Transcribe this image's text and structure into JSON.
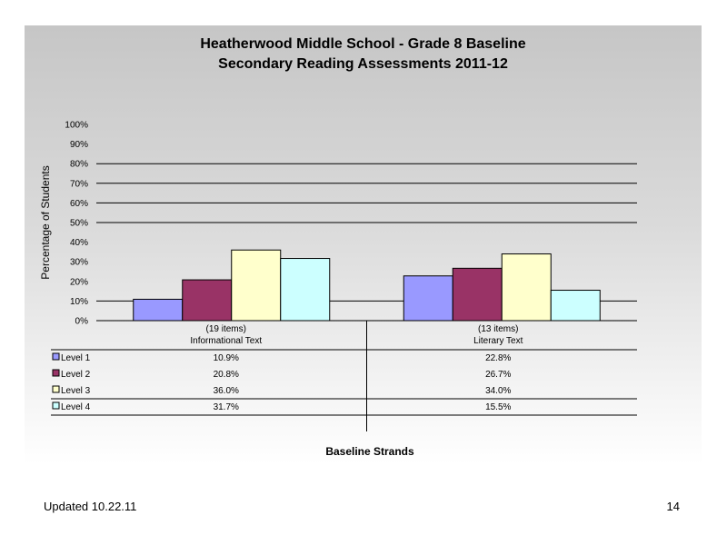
{
  "chart_data": {
    "type": "bar",
    "title_lines": [
      "Heatherwood Middle School - Grade 8 Baseline",
      "Secondary Reading Assessments 2011-12"
    ],
    "ylabel": "Percentage of Students",
    "xlabel": "Baseline Strands",
    "ylim": [
      0,
      100
    ],
    "y_ticks": [
      "0%",
      "10%",
      "20%",
      "30%",
      "40%",
      "50%",
      "60%",
      "70%",
      "80%",
      "90%",
      "100%"
    ],
    "categories": [
      {
        "count": "(19 items)",
        "name": "Informational Text"
      },
      {
        "count": "(13 items)",
        "name": "Literary Text"
      }
    ],
    "series": [
      {
        "name": "Level 1",
        "values": [
          10.9,
          22.8
        ],
        "labels": [
          "10.9%",
          "22.8%"
        ],
        "color": "#9999ff"
      },
      {
        "name": "Level 2",
        "values": [
          20.8,
          26.7
        ],
        "labels": [
          "20.8%",
          "26.7%"
        ],
        "color": "#993366"
      },
      {
        "name": "Level 3",
        "values": [
          36.0,
          34.0
        ],
        "labels": [
          "36.0%",
          "34.0%"
        ],
        "color": "#ffffcc"
      },
      {
        "name": "Level 4",
        "values": [
          31.7,
          15.5
        ],
        "labels": [
          "31.7%",
          "15.5%"
        ],
        "color": "#ccffff"
      }
    ],
    "gridlines": [
      10,
      50,
      60,
      70,
      80
    ],
    "legend": "data-table"
  },
  "footer": {
    "updated": "Updated  10.22.11",
    "page": "14"
  }
}
